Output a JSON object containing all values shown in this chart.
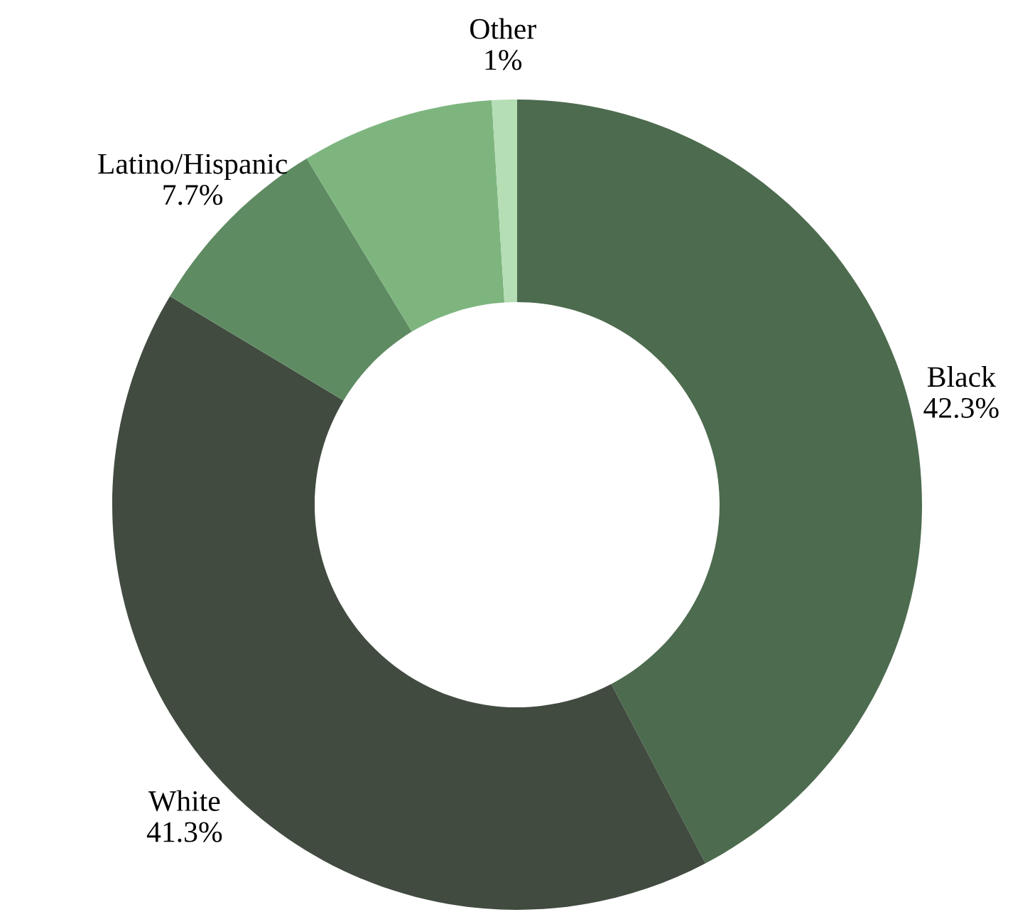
{
  "chart_data": {
    "type": "donut",
    "categories": [
      "Black",
      "White",
      "Latino/Hispanic",
      null,
      "Other"
    ],
    "values": [
      42.3,
      41.3,
      7.7,
      7.7,
      1
    ],
    "value_labels": [
      "42.3%",
      "41.3%",
      "7.7%",
      null,
      "1%"
    ],
    "colors": [
      "#4d6b4e",
      "#414b40",
      "#5f8b62",
      "#7eb57f",
      "#b5deb5"
    ],
    "legend": false
  }
}
